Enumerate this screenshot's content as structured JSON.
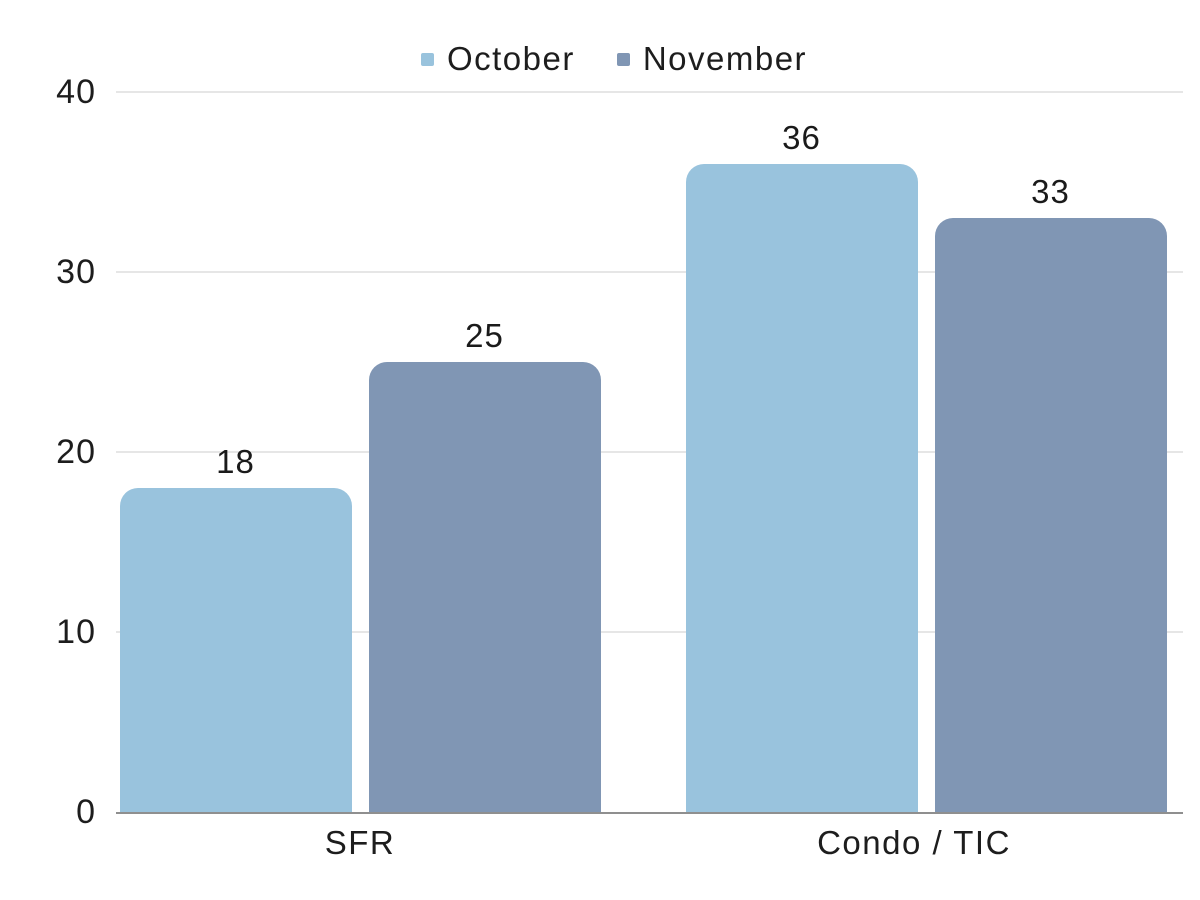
{
  "chart_data": {
    "type": "bar",
    "title": "",
    "xlabel": "",
    "ylabel": "",
    "categories": [
      "SFR",
      "Condo / TIC"
    ],
    "series": [
      {
        "name": "October",
        "color": "#99C3DD",
        "values": [
          18,
          36
        ]
      },
      {
        "name": "November",
        "color": "#8096B4",
        "values": [
          25,
          33
        ]
      }
    ],
    "ylim": [
      0,
      40
    ],
    "yticks": [
      0,
      10,
      20,
      30,
      40
    ],
    "grid": true,
    "legend_position": "top",
    "bar_value_labels": [
      [
        18,
        36
      ],
      [
        25,
        33
      ]
    ]
  },
  "colors": {
    "background": "#ffffff",
    "gridline": "#e6e6e6",
    "baseline": "#8f8f8f",
    "text": "#1d1d1d",
    "october": "#99C3DD",
    "november": "#8096B4"
  }
}
